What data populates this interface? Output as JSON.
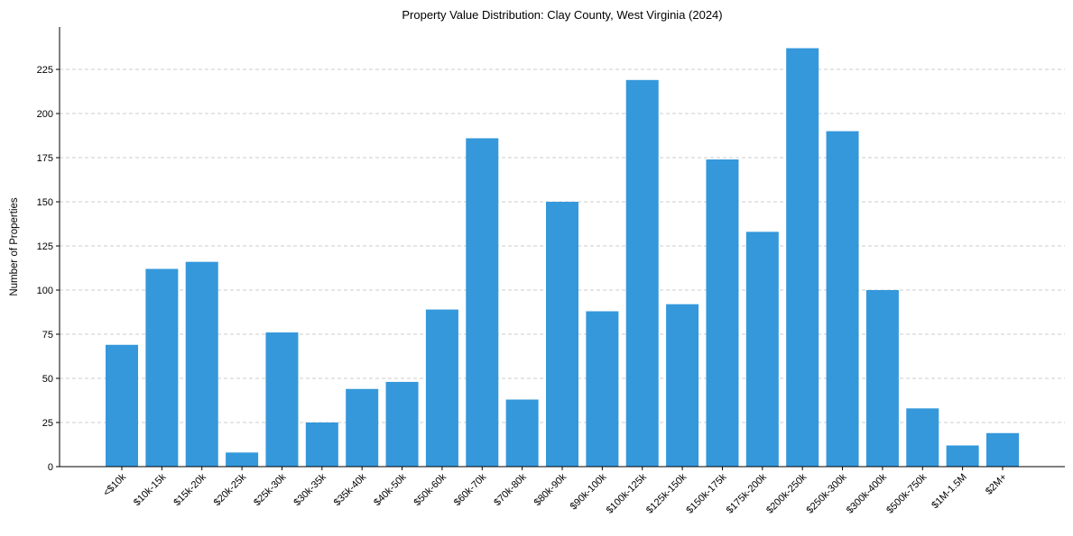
{
  "chart_data": {
    "type": "bar",
    "title": "Property Value Distribution: Clay County, West Virginia (2024)",
    "xlabel": "",
    "ylabel": "Number of Properties",
    "ylim": [
      0,
      249
    ],
    "yticks": [
      0,
      25,
      50,
      75,
      100,
      125,
      150,
      175,
      200,
      225
    ],
    "grid": "y-dashed",
    "bar_color": "#3498db",
    "categories": [
      "<$10k",
      "$10k-15k",
      "$15k-20k",
      "$20k-25k",
      "$25k-30k",
      "$30k-35k",
      "$35k-40k",
      "$40k-50k",
      "$50k-60k",
      "$60k-70k",
      "$70k-80k",
      "$80k-90k",
      "$90k-100k",
      "$100k-125k",
      "$125k-150k",
      "$150k-175k",
      "$175k-200k",
      "$200k-250k",
      "$250k-300k",
      "$300k-400k",
      "$500k-750k",
      "$1M-1.5M",
      "$2M+"
    ],
    "values": [
      69,
      112,
      116,
      8,
      76,
      25,
      44,
      48,
      89,
      186,
      38,
      150,
      88,
      219,
      92,
      174,
      133,
      237,
      190,
      100,
      33,
      12,
      19
    ]
  }
}
